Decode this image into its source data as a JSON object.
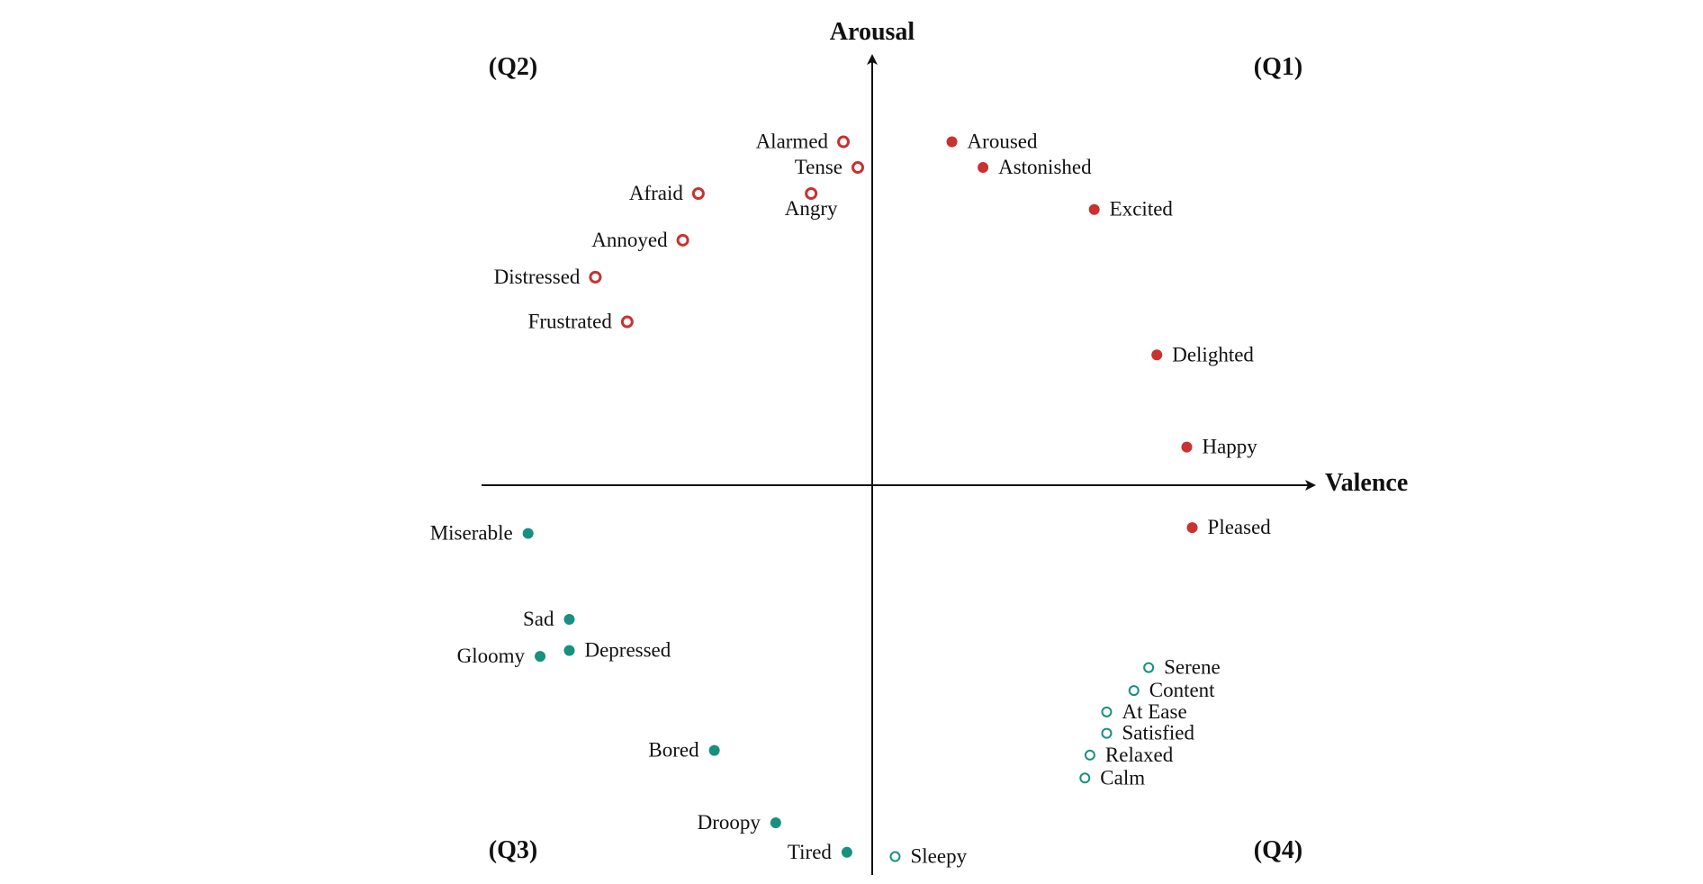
{
  "colors": {
    "q1_filled": "#c8322f",
    "q2_hollow": "#c8322f",
    "q3_filled": "#16907f",
    "q4_hollow": "#16907f",
    "axis": "#111111"
  },
  "chart_data": {
    "type": "scatter",
    "xlabel": "Valence",
    "ylabel": "Arousal",
    "xlim": [
      -1,
      1
    ],
    "ylim": [
      -1,
      1
    ],
    "grid": false,
    "quadrants": [
      "(Q1)",
      "(Q2)",
      "(Q3)",
      "(Q4)"
    ],
    "series": [
      {
        "group": "Q1",
        "marker": "filled",
        "color": "#c8322f",
        "points": [
          {
            "label": "Aroused",
            "x": 0.205,
            "y": 0.883
          },
          {
            "label": "Astonished",
            "x": 0.285,
            "y": 0.817
          },
          {
            "label": "Excited",
            "x": 0.571,
            "y": 0.709
          },
          {
            "label": "Delighted",
            "x": 0.732,
            "y": 0.335
          },
          {
            "label": "Happy",
            "x": 0.809,
            "y": 0.098
          },
          {
            "label": "Pleased",
            "x": 0.823,
            "y": -0.109
          }
        ]
      },
      {
        "group": "Q2",
        "marker": "hollow",
        "color": "#c8322f",
        "points": [
          {
            "label": "Alarmed",
            "x": -0.074,
            "y": 0.883
          },
          {
            "label": "Tense",
            "x": -0.037,
            "y": 0.817
          },
          {
            "label": "Angry",
            "x": -0.157,
            "y": 0.75
          },
          {
            "label": "Afraid",
            "x": -0.447,
            "y": 0.75
          },
          {
            "label": "Annoyed",
            "x": -0.487,
            "y": 0.63
          },
          {
            "label": "Distressed",
            "x": -0.712,
            "y": 0.535
          },
          {
            "label": "Frustrated",
            "x": -0.63,
            "y": 0.42
          }
        ]
      },
      {
        "group": "Q3",
        "marker": "filled",
        "color": "#16907f",
        "points": [
          {
            "label": "Miserable",
            "x": -0.885,
            "y": -0.124
          },
          {
            "label": "Sad",
            "x": -0.779,
            "y": -0.345
          },
          {
            "label": "Depressed",
            "x": -0.779,
            "y": -0.425
          },
          {
            "label": "Gloomy",
            "x": -0.854,
            "y": -0.44
          },
          {
            "label": "Bored",
            "x": -0.406,
            "y": -0.682
          },
          {
            "label": "Droopy",
            "x": -0.248,
            "y": -0.868
          },
          {
            "label": "Tired",
            "x": -0.065,
            "y": -0.944
          }
        ]
      },
      {
        "group": "Q4",
        "marker": "hollow",
        "color": "#16907f",
        "points": [
          {
            "label": "Serene",
            "x": 0.711,
            "y": -0.469
          },
          {
            "label": "Content",
            "x": 0.673,
            "y": -0.528
          },
          {
            "label": "At Ease",
            "x": 0.603,
            "y": -0.583
          },
          {
            "label": "Satisfied",
            "x": 0.603,
            "y": -0.638
          },
          {
            "label": "Relaxed",
            "x": 0.56,
            "y": -0.694
          },
          {
            "label": "Calm",
            "x": 0.547,
            "y": -0.753
          },
          {
            "label": "Sleepy",
            "x": 0.059,
            "y": -0.955
          }
        ]
      }
    ]
  }
}
